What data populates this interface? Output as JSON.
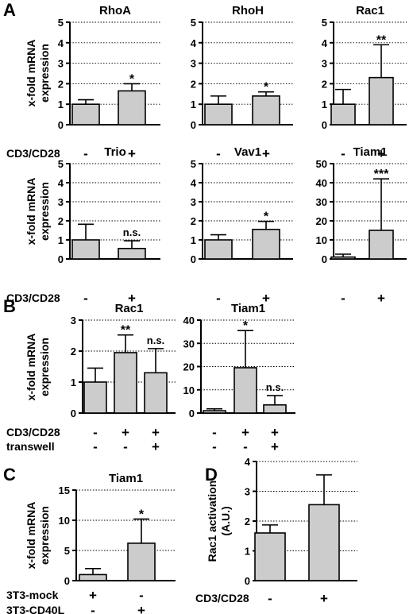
{
  "chart_data": [
    {
      "panel": "A",
      "type": "bar",
      "title": "RhoA",
      "ylim": [
        0,
        5
      ],
      "yticks": [
        0,
        1,
        2,
        3,
        4,
        5
      ],
      "ylabel": "x-fold mRNA\nexpression",
      "categories": [
        "-",
        "+"
      ],
      "values": [
        1.0,
        1.65
      ],
      "errors": [
        0.22,
        0.35
      ],
      "annotations": [
        "",
        "*"
      ],
      "condition_label": "CD3/CD28"
    },
    {
      "panel": "A",
      "type": "bar",
      "title": "RhoH",
      "ylim": [
        0,
        5
      ],
      "yticks": [
        0,
        1,
        2,
        3,
        4,
        5
      ],
      "ylabel": "",
      "categories": [
        "-",
        "+"
      ],
      "values": [
        1.0,
        1.4
      ],
      "errors": [
        0.4,
        0.2
      ],
      "annotations": [
        "",
        "*"
      ],
      "condition_label": ""
    },
    {
      "panel": "A",
      "type": "bar",
      "title": "Rac1",
      "ylim": [
        0,
        5
      ],
      "yticks": [
        0,
        1,
        2,
        3,
        4,
        5
      ],
      "ylabel": "",
      "categories": [
        "-",
        "+"
      ],
      "values": [
        1.0,
        2.3
      ],
      "errors": [
        0.72,
        1.6
      ],
      "annotations": [
        "",
        "**"
      ],
      "condition_label": ""
    },
    {
      "panel": "A",
      "type": "bar",
      "title": "Trio",
      "ylim": [
        0,
        5
      ],
      "yticks": [
        0,
        1,
        2,
        3,
        4,
        5
      ],
      "ylabel": "x-fold mRNA\nexpression",
      "categories": [
        "-",
        "+"
      ],
      "values": [
        1.0,
        0.55
      ],
      "errors": [
        0.82,
        0.4
      ],
      "annotations": [
        "",
        "n.s."
      ],
      "condition_label": "CD3/CD28"
    },
    {
      "panel": "A",
      "type": "bar",
      "title": "Vav1",
      "ylim": [
        0,
        5
      ],
      "yticks": [
        0,
        1,
        2,
        3,
        4,
        5
      ],
      "ylabel": "",
      "categories": [
        "-",
        "+"
      ],
      "values": [
        1.0,
        1.55
      ],
      "errors": [
        0.27,
        0.42
      ],
      "annotations": [
        "",
        "*"
      ],
      "condition_label": ""
    },
    {
      "panel": "A",
      "type": "bar",
      "title": "Tiam1",
      "ylim": [
        0,
        50
      ],
      "yticks": [
        0,
        10,
        20,
        30,
        40,
        50
      ],
      "ylabel": "",
      "categories": [
        "-",
        "+"
      ],
      "values": [
        1.0,
        15.0
      ],
      "errors": [
        1.5,
        27.0
      ],
      "annotations": [
        "",
        "***"
      ],
      "condition_label": ""
    },
    {
      "panel": "B",
      "type": "bar",
      "title": "Rac1",
      "ylim": [
        0,
        3
      ],
      "yticks": [
        0,
        1,
        2,
        3
      ],
      "ylabel": "x-fold mRNA\nexpression",
      "categories": [
        "-/-",
        "+/-",
        "+/+"
      ],
      "values": [
        1.0,
        1.95,
        1.3
      ],
      "errors": [
        0.45,
        0.57,
        0.78
      ],
      "annotations": [
        "",
        "**",
        "n.s."
      ],
      "condition_rows": [
        {
          "label": "CD3/CD28",
          "values": [
            "-",
            "+",
            "+"
          ]
        },
        {
          "label": "transwell",
          "values": [
            "-",
            "-",
            "+"
          ]
        }
      ]
    },
    {
      "panel": "B",
      "type": "bar",
      "title": "Tiam1",
      "ylim": [
        0,
        40
      ],
      "yticks": [
        0,
        10,
        20,
        30,
        40
      ],
      "ylabel": "",
      "categories": [
        "-/-",
        "+/-",
        "+/+"
      ],
      "values": [
        1.0,
        19.5,
        3.5
      ],
      "errors": [
        0.8,
        16.0,
        4.0
      ],
      "annotations": [
        "",
        "*",
        "n.s."
      ],
      "condition_rows": [
        {
          "label": "",
          "values": [
            "-",
            "+",
            "+"
          ]
        },
        {
          "label": "",
          "values": [
            "-",
            "-",
            "+"
          ]
        }
      ]
    },
    {
      "panel": "C",
      "type": "bar",
      "title": "Tiam1",
      "ylim": [
        0,
        15
      ],
      "yticks": [
        0,
        5,
        10,
        15
      ],
      "ylabel": "x-fold mRNA\nexpression",
      "categories": [
        "3T3-mock",
        "3T3-CD40L"
      ],
      "values": [
        1.0,
        6.2
      ],
      "errors": [
        1.0,
        4.0
      ],
      "annotations": [
        "",
        "*"
      ],
      "condition_rows": [
        {
          "label": "3T3-mock",
          "values": [
            "+",
            "-"
          ]
        },
        {
          "label": "3T3-CD40L",
          "values": [
            "-",
            "+"
          ]
        }
      ]
    },
    {
      "panel": "D",
      "type": "bar",
      "title": "",
      "ylim": [
        0,
        4
      ],
      "yticks": [
        0,
        1,
        2,
        3,
        4
      ],
      "ylabel": "Rac1 activation\n(A.U.)",
      "categories": [
        "-",
        "+"
      ],
      "values": [
        1.6,
        2.55
      ],
      "errors": [
        0.27,
        1.0
      ],
      "annotations": [
        "",
        ""
      ],
      "condition_label": "CD3/CD28"
    }
  ]
}
